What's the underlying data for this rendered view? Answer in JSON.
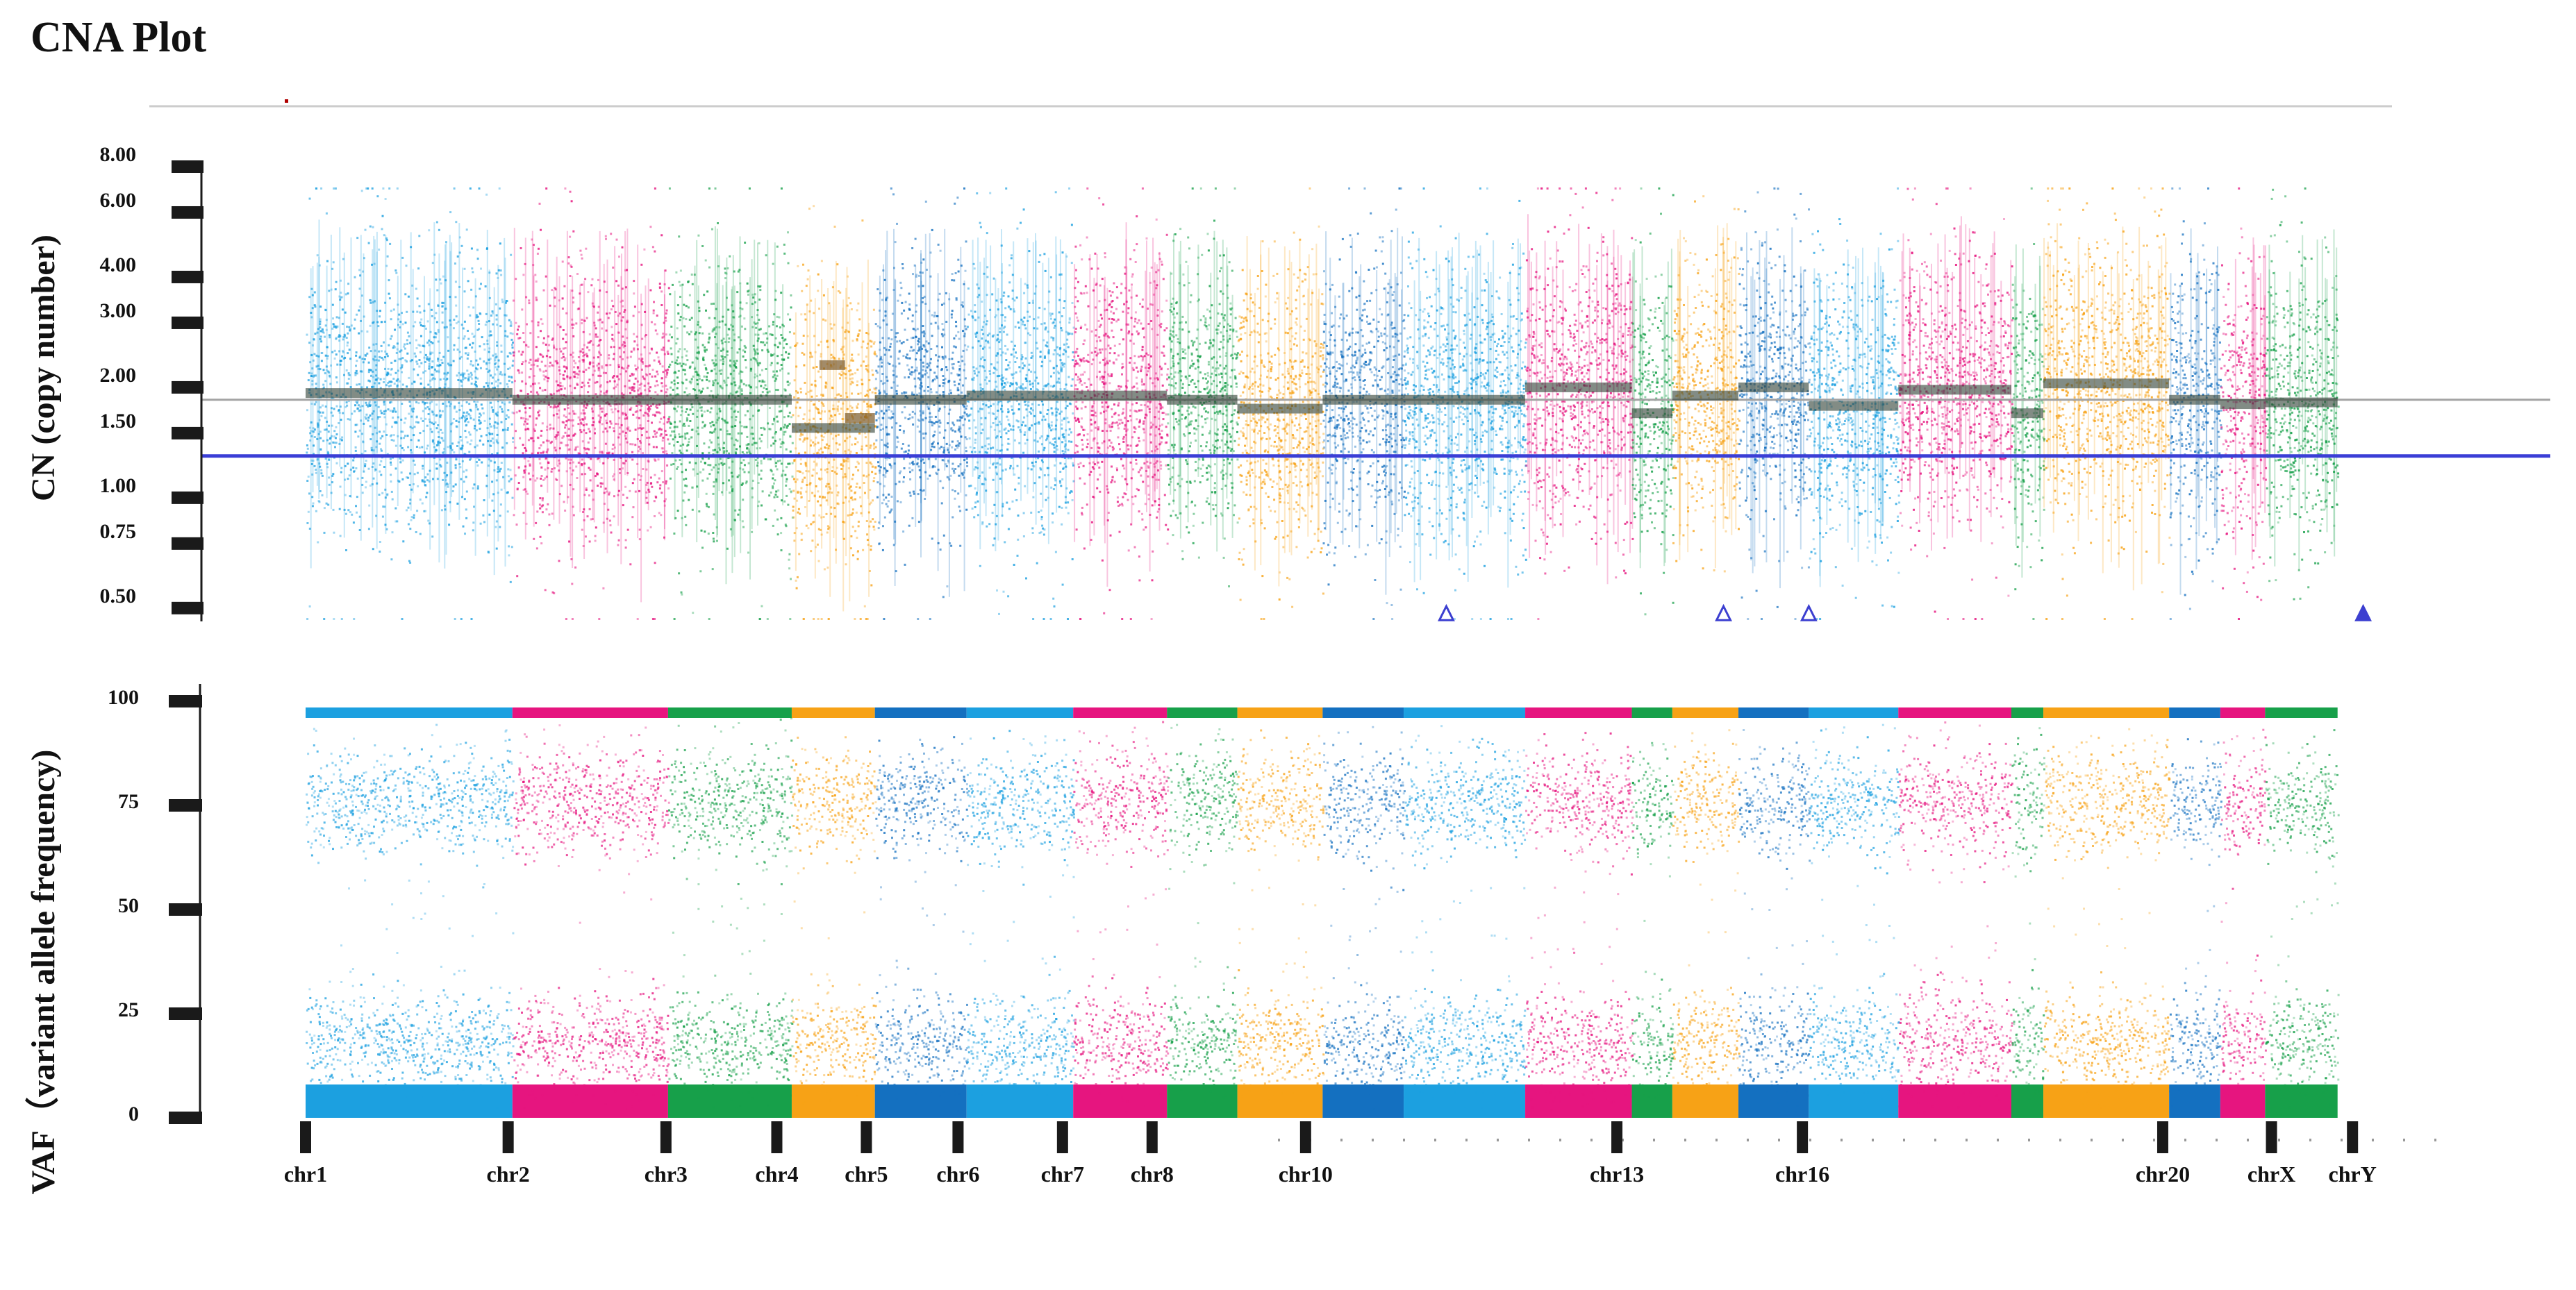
{
  "title": "CNA Plot",
  "colors": {
    "light_blue": "#1ca0e0",
    "dark_blue": "#1470c0",
    "magenta": "#e6157f",
    "green": "#17a04a",
    "orange": "#f7a216",
    "segment": "#2f3f33",
    "baseline_gray": "#a3a3a3",
    "baseline_blue": "#3a3ed6",
    "marker": "#3c3fd0",
    "axis": "#1a1a1a"
  },
  "chart_data": [
    {
      "type": "scatter",
      "panel": "top",
      "ylabel": "CN (copy number)",
      "yscale": "log2",
      "ylim": [
        0.45,
        8.0
      ],
      "yticks": [
        8.0,
        6.0,
        4.0,
        3.0,
        2.0,
        1.5,
        1.0,
        0.75,
        0.5
      ],
      "ytick_labels": [
        "8.00",
        "6.00",
        "4.00",
        "3.00",
        "2.00",
        "1.50",
        "1.00",
        "0.75",
        "0.50"
      ],
      "reference_lines": [
        {
          "name": "gray-reference",
          "y": 1.85,
          "color": "#a3a3a3"
        },
        {
          "name": "blue-reference",
          "y": 1.3,
          "color": "#3a3ed6"
        }
      ],
      "markers": [
        {
          "x": 0.535,
          "y": 0.48,
          "filled": false
        },
        {
          "x": 0.665,
          "y": 0.48,
          "filled": false
        },
        {
          "x": 0.705,
          "y": 0.48,
          "filled": false
        },
        {
          "x": 0.965,
          "y": 0.48,
          "filled": true
        }
      ]
    },
    {
      "type": "scatter",
      "panel": "bottom",
      "ylabel": "VAF（variant allele frequency)",
      "ylim": [
        0,
        100
      ],
      "yticks": [
        100,
        75,
        50,
        25,
        0
      ],
      "ytick_labels": [
        "100",
        "75",
        "50",
        "25",
        "0"
      ],
      "bands": [
        {
          "name": "homozygous",
          "center": 97,
          "width": 1.5,
          "density": 1.0
        },
        {
          "name": "upper",
          "center": 76,
          "width": 9,
          "density": 0.35
        },
        {
          "name": "lower",
          "center": 18,
          "width": 9,
          "density": 0.35
        },
        {
          "name": "floor",
          "center": 4,
          "width": 3.5,
          "density": 1.0
        }
      ]
    }
  ],
  "genome": {
    "x_range": [
      0,
      1
    ],
    "chromosome_labels": [
      {
        "label": "chr1",
        "x": 0.0
      },
      {
        "label": "chr2",
        "x": 0.095
      },
      {
        "label": "chr3",
        "x": 0.169
      },
      {
        "label": "chr4",
        "x": 0.221
      },
      {
        "label": "chr5",
        "x": 0.263
      },
      {
        "label": "chr6",
        "x": 0.306
      },
      {
        "label": "chr7",
        "x": 0.355
      },
      {
        "label": "chr8",
        "x": 0.397
      },
      {
        "label": "chr10",
        "x": 0.469
      },
      {
        "label": "chr13",
        "x": 0.615
      },
      {
        "label": "chr16",
        "x": 0.702
      },
      {
        "label": "chr20",
        "x": 0.871
      },
      {
        "label": "chrX",
        "x": 0.922
      },
      {
        "label": "chrY",
        "x": 0.96
      }
    ],
    "blocks": [
      {
        "x0": 0.0,
        "x1": 0.097,
        "color": "light_blue",
        "cn": 1.93
      },
      {
        "x0": 0.097,
        "x1": 0.17,
        "color": "magenta",
        "cn": 1.85
      },
      {
        "x0": 0.17,
        "x1": 0.228,
        "color": "green",
        "cn": 1.85
      },
      {
        "x0": 0.228,
        "x1": 0.267,
        "color": "orange",
        "cn": 1.55
      },
      {
        "x0": 0.267,
        "x1": 0.31,
        "color": "dark_blue",
        "cn": 1.85
      },
      {
        "x0": 0.31,
        "x1": 0.36,
        "color": "light_blue",
        "cn": 1.9
      },
      {
        "x0": 0.36,
        "x1": 0.404,
        "color": "magenta",
        "cn": 1.9
      },
      {
        "x0": 0.404,
        "x1": 0.437,
        "color": "green",
        "cn": 1.85
      },
      {
        "x0": 0.437,
        "x1": 0.477,
        "color": "orange",
        "cn": 1.75
      },
      {
        "x0": 0.477,
        "x1": 0.515,
        "color": "dark_blue",
        "cn": 1.85
      },
      {
        "x0": 0.515,
        "x1": 0.572,
        "color": "light_blue",
        "cn": 1.85
      },
      {
        "x0": 0.572,
        "x1": 0.622,
        "color": "magenta",
        "cn": 2.0
      },
      {
        "x0": 0.622,
        "x1": 0.641,
        "color": "green",
        "cn": 1.7
      },
      {
        "x0": 0.641,
        "x1": 0.672,
        "color": "orange",
        "cn": 1.9
      },
      {
        "x0": 0.672,
        "x1": 0.705,
        "color": "dark_blue",
        "cn": 2.0
      },
      {
        "x0": 0.705,
        "x1": 0.747,
        "color": "light_blue",
        "cn": 1.78
      },
      {
        "x0": 0.747,
        "x1": 0.8,
        "color": "magenta",
        "cn": 1.97
      },
      {
        "x0": 0.8,
        "x1": 0.815,
        "color": "green",
        "cn": 1.7
      },
      {
        "x0": 0.815,
        "x1": 0.874,
        "color": "orange",
        "cn": 2.05
      },
      {
        "x0": 0.874,
        "x1": 0.898,
        "color": "dark_blue",
        "cn": 1.85
      },
      {
        "x0": 0.898,
        "x1": 0.919,
        "color": "magenta",
        "cn": 1.8
      },
      {
        "x0": 0.919,
        "x1": 0.953,
        "color": "green",
        "cn": 1.82
      }
    ],
    "segments": [
      {
        "x0": 0.241,
        "x1": 0.253,
        "cn": 2.3
      },
      {
        "x0": 0.253,
        "x1": 0.267,
        "cn": 1.65
      }
    ]
  }
}
